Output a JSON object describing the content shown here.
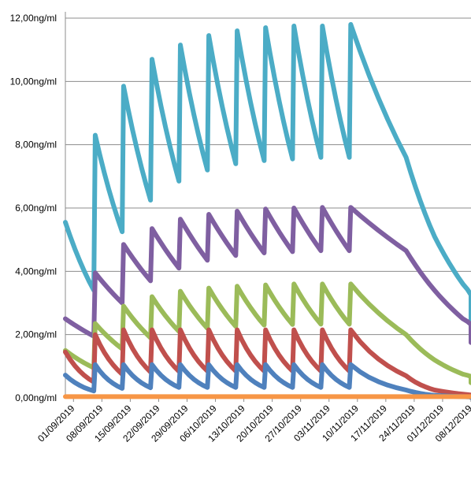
{
  "chart_data": {
    "type": "line",
    "title": "",
    "xlabel": "",
    "ylabel": "",
    "ylim": [
      0,
      12
    ],
    "y_unit": "ng/ml",
    "y_tick_labels": [
      "0,00ng/ml",
      "2,00ng/ml",
      "4,00ng/ml",
      "6,00ng/ml",
      "8,00ng/ml",
      "10,00ng/ml",
      "12,00ng/ml"
    ],
    "y_ticks": [
      0,
      2,
      4,
      6,
      8,
      10,
      12
    ],
    "x_tick_labels": [
      "01/09/2019",
      "08/09/2019",
      "15/09/2019",
      "22/09/2019",
      "29/09/2019",
      "06/10/2019",
      "13/10/2019",
      "20/10/2019",
      "27/10/2019",
      "03/11/2019",
      "10/11/2019",
      "17/11/2019",
      "24/11/2019",
      "01/12/2019",
      "08/12/2019"
    ],
    "x_range": [
      "2019-08-30",
      "2019-12-08"
    ],
    "grid": "horizontal",
    "legend": "none",
    "dose_dates": [
      "2019-09-06",
      "2019-09-13",
      "2019-09-20",
      "2019-09-27",
      "2019-10-04",
      "2019-10-11",
      "2019-10-18",
      "2019-10-25",
      "2019-11-01",
      "2019-11-08"
    ],
    "series": [
      {
        "color": "#4bacc6",
        "start_date": "2019-08-30",
        "start_value": 5.55,
        "peaks": [
          8.3,
          9.85,
          10.7,
          11.15,
          11.45,
          11.6,
          11.7,
          11.75,
          11.75,
          11.8
        ],
        "troughs": [
          3.4,
          5.25,
          6.25,
          6.85,
          7.2,
          7.4,
          7.5,
          7.55,
          7.6,
          7.6
        ],
        "tail": [
          [
            14,
            7.6
          ],
          [
            21,
            5.1
          ],
          [
            28,
            3.6
          ],
          [
            35,
            2.65
          ],
          [
            39,
            2.25
          ]
        ]
      },
      {
        "color": "#7f5fa1",
        "start_date": "2019-08-30",
        "start_value": 2.5,
        "peaks": [
          3.95,
          4.85,
          5.35,
          5.65,
          5.8,
          5.9,
          5.97,
          6.0,
          6.02,
          6.02
        ],
        "troughs": [
          1.95,
          3.0,
          3.7,
          4.1,
          4.35,
          4.5,
          4.58,
          4.62,
          4.65,
          4.65
        ],
        "tail": [
          [
            14,
            4.65
          ],
          [
            21,
            3.4
          ],
          [
            28,
            2.5
          ],
          [
            35,
            2.0
          ],
          [
            39,
            1.75
          ]
        ]
      },
      {
        "color": "#9bbb59",
        "start_date": "2019-08-30",
        "start_value": 1.5,
        "peaks": [
          2.35,
          2.9,
          3.2,
          3.37,
          3.47,
          3.53,
          3.57,
          3.6,
          3.6,
          3.6
        ],
        "troughs": [
          0.95,
          1.55,
          1.9,
          2.1,
          2.2,
          2.26,
          2.3,
          2.32,
          2.33,
          2.33
        ],
        "tail": [
          [
            14,
            2.0
          ],
          [
            21,
            1.2
          ],
          [
            28,
            0.75
          ],
          [
            35,
            0.55
          ],
          [
            39,
            0.48
          ]
        ]
      },
      {
        "color": "#c0504d",
        "start_date": "2019-08-30",
        "start_value": 1.45,
        "peaks": [
          2.0,
          2.15,
          2.15,
          2.15,
          2.15,
          2.15,
          2.15,
          2.15,
          2.15,
          2.15
        ],
        "troughs": [
          0.5,
          0.75,
          0.82,
          0.84,
          0.85,
          0.85,
          0.85,
          0.85,
          0.85,
          0.85
        ],
        "tail": [
          [
            14,
            0.7
          ],
          [
            21,
            0.25
          ],
          [
            28,
            0.12
          ],
          [
            35,
            0.05
          ],
          [
            39,
            0.03
          ]
        ]
      },
      {
        "color": "#4f81bd",
        "start_date": "2019-08-30",
        "start_value": 0.72,
        "peaks": [
          1.05,
          1.05,
          1.05,
          1.05,
          1.05,
          1.05,
          1.05,
          1.05,
          1.05,
          1.05
        ],
        "troughs": [
          0.22,
          0.3,
          0.32,
          0.33,
          0.33,
          0.33,
          0.33,
          0.33,
          0.33,
          0.33
        ],
        "tail": [
          [
            14,
            0.25
          ],
          [
            21,
            0.08
          ],
          [
            28,
            0.04
          ],
          [
            35,
            0.02
          ],
          [
            39,
            0.01
          ]
        ]
      },
      {
        "color": "#f79646",
        "start_date": "2019-08-30",
        "start_value": 0.04,
        "peaks": [],
        "troughs": [],
        "tail": [
          [
            100,
            0.04
          ]
        ]
      }
    ]
  }
}
